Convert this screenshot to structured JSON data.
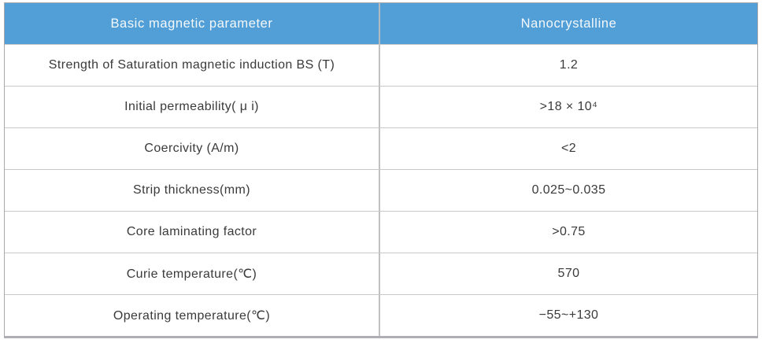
{
  "table": {
    "headers": [
      "Basic magnetic parameter",
      "Nanocrystalline"
    ],
    "rows": [
      {
        "parameter": "Strength of Saturation magnetic induction BS (T)",
        "value": "1.2"
      },
      {
        "parameter": "Initial permeability( μ i)",
        "value": ">18 × 10⁴"
      },
      {
        "parameter": "Coercivity (A/m)",
        "value": "<2"
      },
      {
        "parameter": "Strip thickness(mm)",
        "value": "0.025~0.035"
      },
      {
        "parameter": "Core laminating factor",
        "value": ">0.75"
      },
      {
        "parameter": "Curie temperature(℃)",
        "value": "570"
      },
      {
        "parameter": "Operating temperature(℃)",
        "value": "−55~+130"
      }
    ],
    "colors": {
      "header_bg": "#529fd8",
      "header_text": "#f4f8fb",
      "body_text": "#3a3a3a",
      "grid_line": "#c9c9c9",
      "outer_border": "#a9a9ad"
    }
  }
}
